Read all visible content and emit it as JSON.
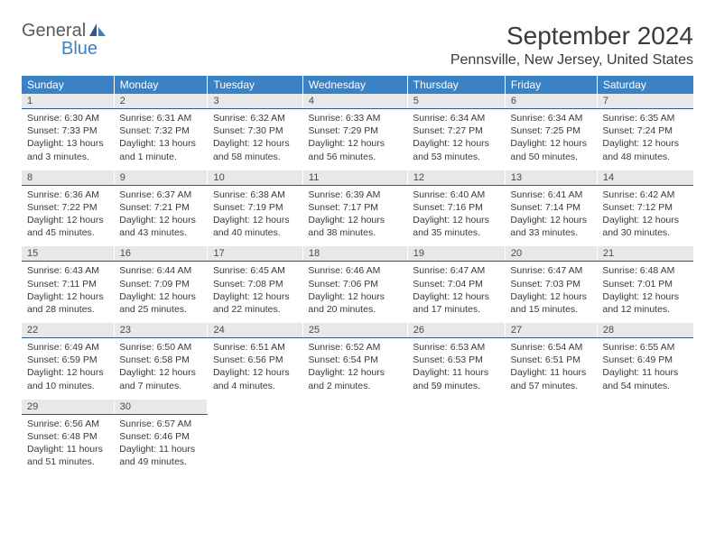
{
  "logo": {
    "line1": "General",
    "line2": "Blue"
  },
  "title": "September 2024",
  "location": "Pennsville, New Jersey, United States",
  "weekdays": [
    "Sunday",
    "Monday",
    "Tuesday",
    "Wednesday",
    "Thursday",
    "Friday",
    "Saturday"
  ],
  "colors": {
    "header_bg": "#3b82c4",
    "header_text": "#ffffff",
    "daynum_bg": "#e8e8e8",
    "daynum_border": "#2d5a8a",
    "text": "#3a3a3a",
    "logo_gray": "#595959",
    "logo_blue": "#3b82c4"
  },
  "weeks": [
    [
      {
        "num": "1",
        "sunrise": "Sunrise: 6:30 AM",
        "sunset": "Sunset: 7:33 PM",
        "daylight": "Daylight: 13 hours and 3 minutes."
      },
      {
        "num": "2",
        "sunrise": "Sunrise: 6:31 AM",
        "sunset": "Sunset: 7:32 PM",
        "daylight": "Daylight: 13 hours and 1 minute."
      },
      {
        "num": "3",
        "sunrise": "Sunrise: 6:32 AM",
        "sunset": "Sunset: 7:30 PM",
        "daylight": "Daylight: 12 hours and 58 minutes."
      },
      {
        "num": "4",
        "sunrise": "Sunrise: 6:33 AM",
        "sunset": "Sunset: 7:29 PM",
        "daylight": "Daylight: 12 hours and 56 minutes."
      },
      {
        "num": "5",
        "sunrise": "Sunrise: 6:34 AM",
        "sunset": "Sunset: 7:27 PM",
        "daylight": "Daylight: 12 hours and 53 minutes."
      },
      {
        "num": "6",
        "sunrise": "Sunrise: 6:34 AM",
        "sunset": "Sunset: 7:25 PM",
        "daylight": "Daylight: 12 hours and 50 minutes."
      },
      {
        "num": "7",
        "sunrise": "Sunrise: 6:35 AM",
        "sunset": "Sunset: 7:24 PM",
        "daylight": "Daylight: 12 hours and 48 minutes."
      }
    ],
    [
      {
        "num": "8",
        "sunrise": "Sunrise: 6:36 AM",
        "sunset": "Sunset: 7:22 PM",
        "daylight": "Daylight: 12 hours and 45 minutes."
      },
      {
        "num": "9",
        "sunrise": "Sunrise: 6:37 AM",
        "sunset": "Sunset: 7:21 PM",
        "daylight": "Daylight: 12 hours and 43 minutes."
      },
      {
        "num": "10",
        "sunrise": "Sunrise: 6:38 AM",
        "sunset": "Sunset: 7:19 PM",
        "daylight": "Daylight: 12 hours and 40 minutes."
      },
      {
        "num": "11",
        "sunrise": "Sunrise: 6:39 AM",
        "sunset": "Sunset: 7:17 PM",
        "daylight": "Daylight: 12 hours and 38 minutes."
      },
      {
        "num": "12",
        "sunrise": "Sunrise: 6:40 AM",
        "sunset": "Sunset: 7:16 PM",
        "daylight": "Daylight: 12 hours and 35 minutes."
      },
      {
        "num": "13",
        "sunrise": "Sunrise: 6:41 AM",
        "sunset": "Sunset: 7:14 PM",
        "daylight": "Daylight: 12 hours and 33 minutes."
      },
      {
        "num": "14",
        "sunrise": "Sunrise: 6:42 AM",
        "sunset": "Sunset: 7:12 PM",
        "daylight": "Daylight: 12 hours and 30 minutes."
      }
    ],
    [
      {
        "num": "15",
        "sunrise": "Sunrise: 6:43 AM",
        "sunset": "Sunset: 7:11 PM",
        "daylight": "Daylight: 12 hours and 28 minutes."
      },
      {
        "num": "16",
        "sunrise": "Sunrise: 6:44 AM",
        "sunset": "Sunset: 7:09 PM",
        "daylight": "Daylight: 12 hours and 25 minutes."
      },
      {
        "num": "17",
        "sunrise": "Sunrise: 6:45 AM",
        "sunset": "Sunset: 7:08 PM",
        "daylight": "Daylight: 12 hours and 22 minutes."
      },
      {
        "num": "18",
        "sunrise": "Sunrise: 6:46 AM",
        "sunset": "Sunset: 7:06 PM",
        "daylight": "Daylight: 12 hours and 20 minutes."
      },
      {
        "num": "19",
        "sunrise": "Sunrise: 6:47 AM",
        "sunset": "Sunset: 7:04 PM",
        "daylight": "Daylight: 12 hours and 17 minutes."
      },
      {
        "num": "20",
        "sunrise": "Sunrise: 6:47 AM",
        "sunset": "Sunset: 7:03 PM",
        "daylight": "Daylight: 12 hours and 15 minutes."
      },
      {
        "num": "21",
        "sunrise": "Sunrise: 6:48 AM",
        "sunset": "Sunset: 7:01 PM",
        "daylight": "Daylight: 12 hours and 12 minutes."
      }
    ],
    [
      {
        "num": "22",
        "sunrise": "Sunrise: 6:49 AM",
        "sunset": "Sunset: 6:59 PM",
        "daylight": "Daylight: 12 hours and 10 minutes."
      },
      {
        "num": "23",
        "sunrise": "Sunrise: 6:50 AM",
        "sunset": "Sunset: 6:58 PM",
        "daylight": "Daylight: 12 hours and 7 minutes."
      },
      {
        "num": "24",
        "sunrise": "Sunrise: 6:51 AM",
        "sunset": "Sunset: 6:56 PM",
        "daylight": "Daylight: 12 hours and 4 minutes."
      },
      {
        "num": "25",
        "sunrise": "Sunrise: 6:52 AM",
        "sunset": "Sunset: 6:54 PM",
        "daylight": "Daylight: 12 hours and 2 minutes."
      },
      {
        "num": "26",
        "sunrise": "Sunrise: 6:53 AM",
        "sunset": "Sunset: 6:53 PM",
        "daylight": "Daylight: 11 hours and 59 minutes."
      },
      {
        "num": "27",
        "sunrise": "Sunrise: 6:54 AM",
        "sunset": "Sunset: 6:51 PM",
        "daylight": "Daylight: 11 hours and 57 minutes."
      },
      {
        "num": "28",
        "sunrise": "Sunrise: 6:55 AM",
        "sunset": "Sunset: 6:49 PM",
        "daylight": "Daylight: 11 hours and 54 minutes."
      }
    ],
    [
      {
        "num": "29",
        "sunrise": "Sunrise: 6:56 AM",
        "sunset": "Sunset: 6:48 PM",
        "daylight": "Daylight: 11 hours and 51 minutes."
      },
      {
        "num": "30",
        "sunrise": "Sunrise: 6:57 AM",
        "sunset": "Sunset: 6:46 PM",
        "daylight": "Daylight: 11 hours and 49 minutes."
      },
      null,
      null,
      null,
      null,
      null
    ]
  ]
}
